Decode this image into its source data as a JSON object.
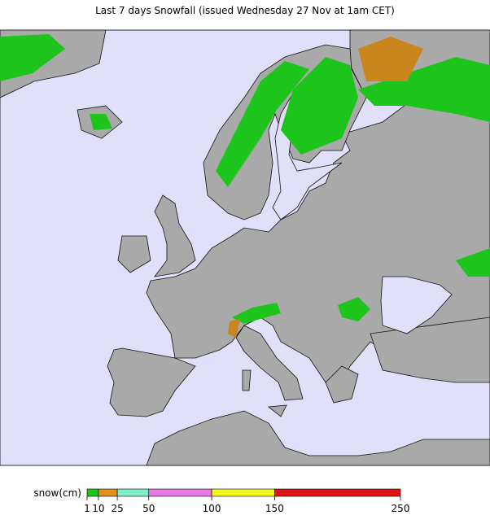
{
  "title": "Last 7 days Snowfall (issued Wednesday 27 Nov at 1am CET)",
  "legend": {
    "label": "snow(cm)",
    "ticks": [
      1,
      10,
      25,
      50,
      100,
      150,
      250
    ],
    "colors": [
      "#18c818",
      "#e0901c",
      "#80ecc8",
      "#e878e8",
      "#f4f420",
      "#e01414"
    ]
  }
}
